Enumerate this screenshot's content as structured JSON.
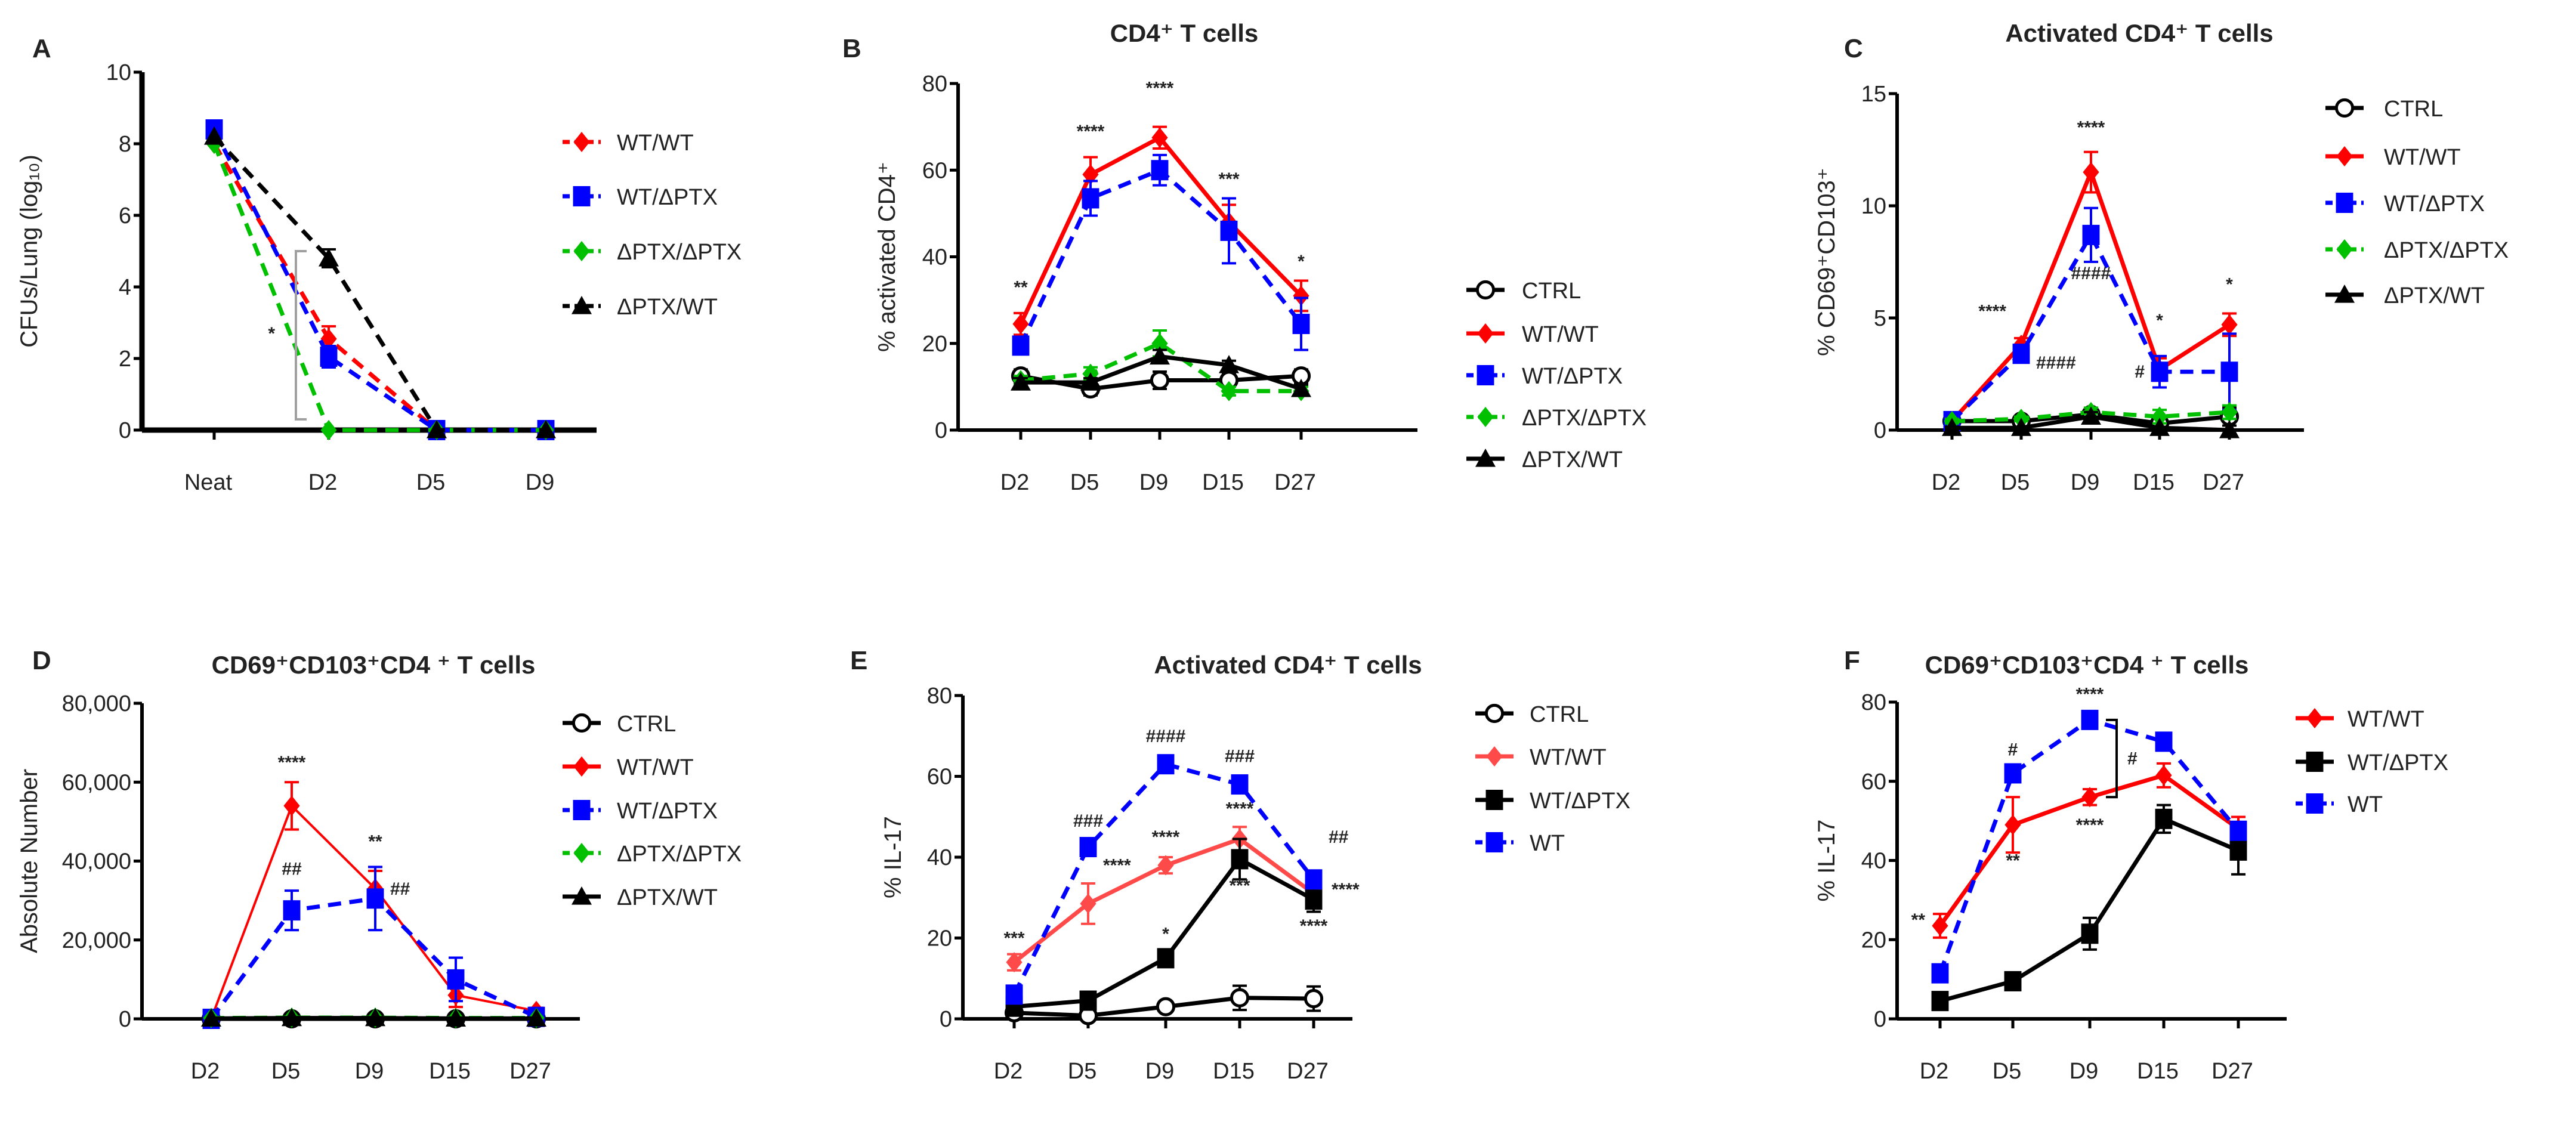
{
  "colors": {
    "red": "#ff0000",
    "light_red": "#ff4a4a",
    "blue": "#0000ff",
    "green": "#00c000",
    "black": "#000000",
    "gray": "#a0a0a0"
  },
  "chart_data": [
    {
      "panel": "A",
      "type": "line",
      "title": "",
      "xlabel": "",
      "ylabel": "CFUs/Lung (log₁₀)",
      "categories": [
        "Neat",
        "D2",
        "D5",
        "D9"
      ],
      "ylim": [
        0,
        10
      ],
      "yticks": [
        "0",
        "2",
        "4",
        "6",
        "8",
        "10"
      ],
      "ytick_values": [
        0,
        2,
        4,
        6,
        8,
        10
      ],
      "grid": false,
      "legend": "right",
      "series": [
        {
          "name": "WT/WT",
          "color": "#ff0000",
          "marker": "diamond",
          "dashed": true,
          "values": [
            8.0,
            2.55,
            0,
            0
          ],
          "errors": [
            0,
            0.35,
            0,
            0
          ]
        },
        {
          "name": "WT/ΔPTX",
          "color": "#0000ff",
          "marker": "square",
          "dashed": true,
          "values": [
            8.4,
            2.05,
            0,
            0
          ],
          "errors": [
            0,
            0.3,
            0,
            0
          ]
        },
        {
          "name": "ΔPTX/ΔPTX",
          "color": "#00c000",
          "marker": "diamond",
          "dashed": true,
          "values": [
            8.0,
            0,
            0,
            0
          ],
          "errors": [
            0,
            0,
            0,
            0
          ]
        },
        {
          "name": "ΔPTX/WT",
          "color": "#000000",
          "marker": "triangle",
          "dashed": true,
          "values": [
            8.2,
            4.8,
            0,
            0
          ],
          "errors": [
            0,
            0.25,
            0,
            0
          ]
        }
      ],
      "annotations": [
        {
          "near": "D2",
          "side": "far-left",
          "y": 2.7,
          "text": "*"
        }
      ],
      "brackets": [
        {
          "near": "D2",
          "side": "left",
          "from": 0.3,
          "to": 5.0,
          "label": ""
        }
      ]
    },
    {
      "panel": "B",
      "type": "line",
      "title": "CD4⁺ T cells",
      "xlabel": "",
      "ylabel": "% activated CD4⁺",
      "categories": [
        "D2",
        "D5",
        "D9",
        "D15",
        "D27"
      ],
      "ylim": [
        0,
        80
      ],
      "yticks": [
        "0",
        "20",
        "40",
        "60",
        "80"
      ],
      "ytick_values": [
        0,
        20,
        40,
        60,
        80
      ],
      "grid": false,
      "legend": "right",
      "series": [
        {
          "name": "CTRL",
          "color": "#000000",
          "marker": "circle-open",
          "dashed": false,
          "values": [
            12.5,
            9.5,
            11.5,
            11.5,
            12.5
          ],
          "errors": [
            1.5,
            1.5,
            2,
            1.5,
            1.5
          ]
        },
        {
          "name": "WT/WT",
          "color": "#ff0000",
          "marker": "diamond",
          "dashed": false,
          "values": [
            24.5,
            59,
            67.5,
            48,
            31
          ],
          "errors": [
            2.5,
            4,
            2.5,
            4,
            3.5
          ]
        },
        {
          "name": "WT/ΔPTX",
          "color": "#0000ff",
          "marker": "square",
          "dashed": true,
          "values": [
            19.5,
            53.5,
            60,
            46,
            24.5
          ],
          "errors": [
            2,
            4,
            3.5,
            7.5,
            6
          ]
        },
        {
          "name": "ΔPTX/ΔPTX",
          "color": "#00c000",
          "marker": "diamond",
          "dashed": true,
          "values": [
            11.5,
            13,
            20,
            9,
            9
          ],
          "errors": [
            1,
            1.5,
            3,
            1,
            1
          ]
        },
        {
          "name": "ΔPTX/WT",
          "color": "#000000",
          "marker": "triangle",
          "dashed": false,
          "values": [
            11,
            11,
            17,
            15,
            9.5
          ],
          "errors": [
            1,
            1,
            1.5,
            1,
            1
          ]
        }
      ],
      "annotations": [
        {
          "near": "D2",
          "side": "above",
          "y": 33,
          "text": "**"
        },
        {
          "near": "D5",
          "side": "above",
          "y": 69,
          "text": "****"
        },
        {
          "near": "D9",
          "side": "above",
          "y": 79,
          "text": "****"
        },
        {
          "near": "D15",
          "side": "above",
          "y": 58,
          "text": "***"
        },
        {
          "near": "D27",
          "side": "above",
          "y": 39,
          "text": "*"
        }
      ],
      "brackets": []
    },
    {
      "panel": "C",
      "type": "line",
      "title": "Activated CD4⁺ T cells",
      "xlabel": "",
      "ylabel": "% CD69⁺CD103⁺",
      "categories": [
        "D2",
        "D5",
        "D9",
        "D15",
        "D27"
      ],
      "ylim": [
        0,
        15
      ],
      "yticks": [
        "0",
        "5",
        "10",
        "15"
      ],
      "ytick_values": [
        0,
        5,
        10,
        15
      ],
      "grid": false,
      "legend": "right",
      "series": [
        {
          "name": "CTRL",
          "color": "#000000",
          "marker": "circle-open",
          "dashed": false,
          "values": [
            0.4,
            0.4,
            0.7,
            0.3,
            0.6
          ],
          "errors": [
            0.1,
            0.1,
            0.2,
            0.1,
            0.4
          ]
        },
        {
          "name": "WT/WT",
          "color": "#ff0000",
          "marker": "diamond",
          "dashed": false,
          "values": [
            0.4,
            3.8,
            11.5,
            2.7,
            4.7
          ],
          "errors": [
            0.1,
            0.3,
            0.9,
            0.5,
            0.5
          ]
        },
        {
          "name": "WT/ΔPTX",
          "color": "#0000ff",
          "marker": "square",
          "dashed": true,
          "values": [
            0.4,
            3.4,
            8.7,
            2.6,
            2.6
          ],
          "errors": [
            0.2,
            0.2,
            1.2,
            0.7,
            1.7
          ]
        },
        {
          "name": "ΔPTX/ΔPTX",
          "color": "#00c000",
          "marker": "diamond",
          "dashed": true,
          "values": [
            0.4,
            0.5,
            0.8,
            0.6,
            0.8
          ],
          "errors": [
            0.1,
            0.1,
            0.2,
            0.3,
            0.3
          ]
        },
        {
          "name": "ΔPTX/WT",
          "color": "#000000",
          "marker": "triangle",
          "dashed": false,
          "values": [
            0.1,
            0.1,
            0.6,
            0.1,
            0.0
          ],
          "errors": [
            0.05,
            0.05,
            0.2,
            0.05,
            0
          ]
        }
      ],
      "annotations": [
        {
          "near": "D9",
          "side": "above",
          "y": 13.5,
          "text": "****"
        },
        {
          "near": "D9",
          "side": "above",
          "y": 7.0,
          "text": "####"
        },
        {
          "near": "D5",
          "side": "left",
          "y": 5.3,
          "text": "****"
        },
        {
          "near": "D5",
          "side": "right",
          "y": 3.0,
          "text": "####"
        },
        {
          "near": "D15",
          "side": "above",
          "y": 4.9,
          "text": "*"
        },
        {
          "near": "D15",
          "side": "left",
          "y": 2.6,
          "text": "#"
        },
        {
          "near": "D27",
          "side": "above",
          "y": 6.5,
          "text": "*"
        }
      ],
      "brackets": []
    },
    {
      "panel": "D",
      "type": "line",
      "title": "CD69⁺CD103⁺CD4 ⁺ T cells",
      "xlabel": "",
      "ylabel": "Absolute Number",
      "categories": [
        "D2",
        "D5",
        "D9",
        "D15",
        "D27"
      ],
      "ylim": [
        0,
        80000
      ],
      "yticks": [
        "0",
        "20,000",
        "40,000",
        "60,000",
        "80,000"
      ],
      "ytick_values": [
        0,
        20000,
        40000,
        60000,
        80000
      ],
      "grid": false,
      "legend": "right",
      "series": [
        {
          "name": "CTRL",
          "color": "#000000",
          "marker": "circle-open",
          "dashed": false,
          "values": [
            0,
            0,
            0,
            0,
            0
          ],
          "errors": [
            0,
            0,
            0,
            0,
            0
          ]
        },
        {
          "name": "WT/WT",
          "color": "#ff0000",
          "marker": "diamond",
          "dashed": false,
          "values": [
            0,
            54000,
            33000,
            6000,
            2000
          ],
          "errors": [
            0,
            6000,
            4500,
            3000,
            800
          ]
        },
        {
          "name": "WT/ΔPTX",
          "color": "#0000ff",
          "marker": "square",
          "dashed": true,
          "values": [
            0,
            27500,
            30500,
            10000,
            500
          ],
          "errors": [
            0,
            5000,
            8000,
            5500,
            300
          ]
        },
        {
          "name": "ΔPTX/ΔPTX",
          "color": "#00c000",
          "marker": "diamond",
          "dashed": true,
          "values": [
            200,
            300,
            300,
            200,
            200
          ],
          "errors": [
            0,
            0,
            0,
            0,
            0
          ]
        },
        {
          "name": "ΔPTX/WT",
          "color": "#000000",
          "marker": "triangle",
          "dashed": false,
          "values": [
            100,
            200,
            200,
            100,
            100
          ],
          "errors": [
            0,
            0,
            0,
            0,
            0
          ]
        }
      ],
      "annotations": [
        {
          "near": "D5",
          "side": "above",
          "y": 65000,
          "text": "****"
        },
        {
          "near": "D5",
          "side": "above",
          "y": 38000,
          "text": "##"
        },
        {
          "near": "D9",
          "side": "above",
          "y": 45000,
          "text": "**"
        },
        {
          "near": "D9",
          "side": "right",
          "y": 33000,
          "text": "##"
        }
      ],
      "brackets": []
    },
    {
      "panel": "E",
      "type": "line",
      "title": "Activated CD4⁺ T cells",
      "xlabel": "",
      "ylabel": "% IL-17",
      "categories": [
        "D2",
        "D5",
        "D9",
        "D15",
        "D27"
      ],
      "ylim": [
        0,
        80
      ],
      "yticks": [
        "0",
        "20",
        "40",
        "60",
        "80"
      ],
      "ytick_values": [
        0,
        20,
        40,
        60,
        80
      ],
      "grid": false,
      "legend": "right",
      "series": [
        {
          "name": "CTRL",
          "color": "#000000",
          "marker": "circle-open",
          "dashed": false,
          "values": [
            1.5,
            0.8,
            3,
            5.2,
            5
          ],
          "errors": [
            1,
            0.5,
            1,
            3,
            3
          ]
        },
        {
          "name": "WT/WT",
          "color": "#ff4a4a",
          "marker": "diamond",
          "dashed": false,
          "values": [
            14,
            28.5,
            38,
            44.5,
            31
          ],
          "errors": [
            2,
            5,
            2,
            3,
            2
          ]
        },
        {
          "name": "WT/ΔPTX",
          "color": "#000000",
          "marker": "square",
          "dashed": false,
          "values": [
            3,
            4.5,
            15,
            39.5,
            29.5
          ],
          "errors": [
            1,
            2,
            2,
            5,
            3
          ]
        },
        {
          "name": "WT",
          "color": "#0000ff",
          "marker": "square",
          "dashed": true,
          "values": [
            6,
            42.5,
            63,
            58,
            34.5
          ],
          "errors": [
            0,
            0,
            0,
            0,
            0
          ]
        }
      ],
      "annotations": [
        {
          "near": "D2",
          "side": "above",
          "y": 20,
          "text": "***"
        },
        {
          "near": "D5",
          "side": "above",
          "y": 49,
          "text": "###"
        },
        {
          "near": "D5",
          "side": "right",
          "y": 38,
          "text": "****"
        },
        {
          "near": "D9",
          "side": "above",
          "y": 70,
          "text": "####"
        },
        {
          "near": "D9",
          "side": "above",
          "y": 45,
          "text": "****"
        },
        {
          "near": "D9",
          "side": "above",
          "y": 21,
          "text": "*"
        },
        {
          "near": "D15",
          "side": "above",
          "y": 65,
          "text": "###"
        },
        {
          "near": "D15",
          "side": "above",
          "y": 52,
          "text": "****"
        },
        {
          "near": "D15",
          "side": "above",
          "y": 33,
          "text": "***"
        },
        {
          "near": "D27",
          "side": "right",
          "y": 45,
          "text": "##"
        },
        {
          "near": "D27",
          "side": "far-right",
          "y": 32,
          "text": "****"
        },
        {
          "near": "D27",
          "side": "above",
          "y": 23,
          "text": "****"
        }
      ],
      "brackets": []
    },
    {
      "panel": "F",
      "type": "line",
      "title": "CD69⁺CD103⁺CD4 ⁺ T cells",
      "xlabel": "",
      "ylabel": "% IL-17",
      "categories": [
        "D2",
        "D5",
        "D9",
        "D15",
        "D27"
      ],
      "ylim": [
        0,
        80
      ],
      "yticks": [
        "0",
        "20",
        "40",
        "60",
        "80"
      ],
      "ytick_values": [
        0,
        20,
        40,
        60,
        80
      ],
      "grid": false,
      "legend": "right",
      "series": [
        {
          "name": "WT/WT",
          "color": "#ff0000",
          "marker": "diamond",
          "dashed": false,
          "values": [
            23.5,
            49,
            56,
            61.5,
            48
          ],
          "errors": [
            3,
            7,
            2,
            3,
            3
          ]
        },
        {
          "name": "WT/ΔPTX",
          "color": "#000000",
          "marker": "square",
          "dashed": false,
          "values": [
            4.5,
            9.5,
            21.5,
            50.5,
            42.5
          ],
          "errors": [
            1,
            2,
            4,
            3.5,
            6
          ]
        },
        {
          "name": "WT",
          "color": "#0000ff",
          "marker": "square",
          "dashed": true,
          "values": [
            11.5,
            62,
            75.5,
            70,
            47.5
          ],
          "errors": [
            0,
            0,
            0,
            0,
            0
          ]
        }
      ],
      "annotations": [
        {
          "near": "D2",
          "side": "left",
          "y": 25,
          "text": "**"
        },
        {
          "near": "D5",
          "side": "above",
          "y": 68,
          "text": "#"
        },
        {
          "near": "D5",
          "side": "above",
          "y": 40,
          "text": "**"
        },
        {
          "near": "D9",
          "side": "above",
          "y": 82,
          "text": "****"
        },
        {
          "near": "D9",
          "side": "above",
          "y": 49,
          "text": "****"
        }
      ],
      "brackets": [
        {
          "near": "D9",
          "side": "right",
          "from": 56,
          "to": 75.5,
          "label": "#"
        }
      ]
    }
  ]
}
